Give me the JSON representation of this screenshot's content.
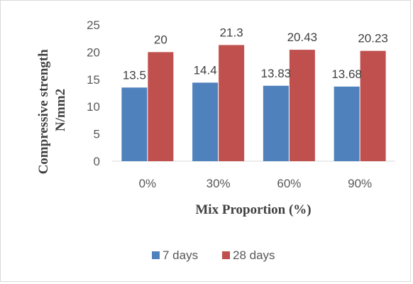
{
  "chart_data": {
    "type": "bar",
    "title": "",
    "xlabel": "Mix Proportion (%)",
    "ylabel_lines": [
      "Compressive strength",
      "N/mm2"
    ],
    "categories": [
      "0%",
      "30%",
      "60%",
      "90%"
    ],
    "series": [
      {
        "name": "7 days",
        "values": [
          13.5,
          14.4,
          13.83,
          13.68
        ],
        "labels": [
          "13.5",
          "14.4",
          "13.83",
          "13.68"
        ],
        "color": "#4f81bd"
      },
      {
        "name": "28 days",
        "values": [
          20,
          21.3,
          20.43,
          20.23
        ],
        "labels": [
          "20",
          "21.3",
          "20.43",
          "20.23"
        ],
        "color": "#c0504d"
      }
    ],
    "ylim": [
      0,
      25
    ],
    "yticks": [
      0,
      5,
      10,
      15,
      20,
      25
    ],
    "grid": false,
    "legend": "bottom"
  }
}
